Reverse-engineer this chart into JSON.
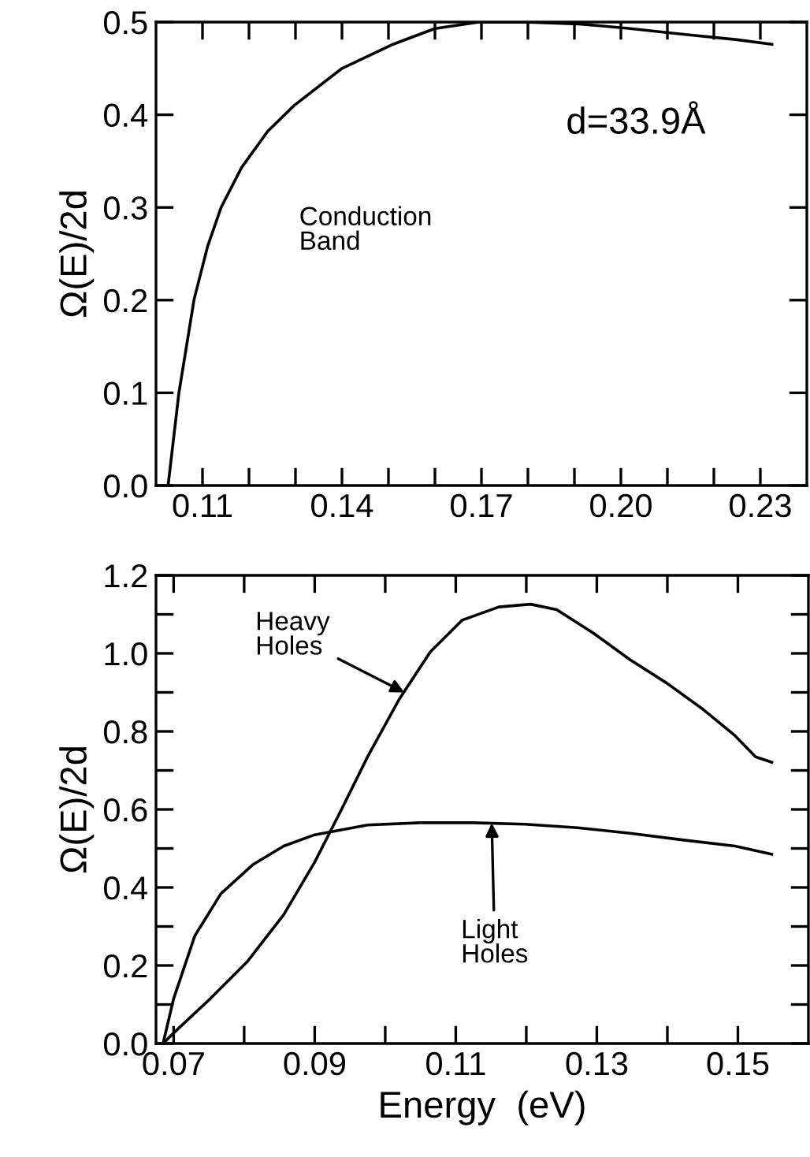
{
  "chart_data": [
    {
      "type": "line",
      "ylabel": "Ω(E)/2d",
      "xlim": [
        0.1,
        0.24
      ],
      "ylim": [
        0,
        0.5
      ],
      "xticks": [
        {
          "value": 0.11,
          "label": "0.11"
        },
        {
          "value": 0.12,
          "label": null
        },
        {
          "value": 0.13,
          "label": null
        },
        {
          "value": 0.14,
          "label": "0.14"
        },
        {
          "value": 0.15,
          "label": null
        },
        {
          "value": 0.16,
          "label": null
        },
        {
          "value": 0.17,
          "label": "0.17"
        },
        {
          "value": 0.18,
          "label": null
        },
        {
          "value": 0.19,
          "label": null
        },
        {
          "value": 0.2,
          "label": "0.20"
        },
        {
          "value": 0.21,
          "label": null
        },
        {
          "value": 0.22,
          "label": null
        },
        {
          "value": 0.23,
          "label": "0.23"
        }
      ],
      "yticks": [
        {
          "value": 0,
          "label": "0.0"
        },
        0.1,
        0.2,
        0.3,
        0.4,
        0.5
      ],
      "grid": false,
      "legend": false,
      "marker": "none",
      "line_style": "solid",
      "annotations": [
        "d=33.9Å",
        "Conduction\nBand"
      ],
      "series": [
        {
          "color": "#000000",
          "x": [
            0.1026,
            0.1049,
            0.1082,
            0.1111,
            0.114,
            0.1184,
            0.124,
            0.1297,
            0.14,
            0.151,
            0.16,
            0.1695,
            0.179,
            0.191,
            0.202,
            0.213,
            0.225,
            0.2325
          ],
          "values": [
            0,
            0.099,
            0.201,
            0.258,
            0.3,
            0.343,
            0.382,
            0.41,
            0.45,
            0.476,
            0.493,
            0.5,
            0.5,
            0.498,
            0.493,
            0.487,
            0.481,
            0.476
          ]
        }
      ]
    },
    {
      "type": "line",
      "xlabel": "Energy  (eV)",
      "ylabel": "Ω(E)/2d",
      "xlim": [
        0.0675,
        0.16
      ],
      "ylim": [
        0,
        1.2
      ],
      "xticks": [
        {
          "value": 0.07,
          "label": "0.07"
        },
        {
          "value": 0.08,
          "label": null
        },
        {
          "value": 0.09,
          "label": "0.09"
        },
        {
          "value": 0.1,
          "label": null
        },
        {
          "value": 0.11,
          "label": "0.11"
        },
        {
          "value": 0.12,
          "label": null
        },
        {
          "value": 0.13,
          "label": "0.13"
        },
        {
          "value": 0.14,
          "label": null
        },
        {
          "value": 0.15,
          "label": "0.15"
        }
      ],
      "yticks": [
        {
          "value": 0,
          "label": "0.0"
        },
        {
          "value": 0.1,
          "label": null
        },
        0.2,
        {
          "value": 0.3,
          "label": null
        },
        0.4,
        {
          "value": 0.5,
          "label": null
        },
        0.6,
        {
          "value": 0.7,
          "label": null
        },
        0.8,
        {
          "value": 0.9,
          "label": null
        },
        {
          "value": 1.0,
          "label": "1.0"
        },
        {
          "value": 1.1,
          "label": null
        },
        1.2
      ],
      "grid": false,
      "legend": false,
      "marker": "none",
      "line_style": "solid",
      "annotations": [
        {
          "text": "Heavy\nHoles",
          "x": 0.1027,
          "y": 0.9
        },
        {
          "text": "Light\nHoles",
          "x": 0.1151,
          "y": 0.565
        }
      ],
      "series": [
        {
          "color": "#000000",
          "x": [
            0.0685,
            0.07,
            0.0752,
            0.0804,
            0.0856,
            0.09,
            0.0938,
            0.0975,
            0.102,
            0.1064,
            0.1109,
            0.1161,
            0.1206,
            0.1243,
            0.1295,
            0.1347,
            0.1399,
            0.1451,
            0.1496,
            0.1525,
            0.1548
          ],
          "values": [
            0,
            0.027,
            0.115,
            0.209,
            0.33,
            0.465,
            0.6,
            0.735,
            0.883,
            1.004,
            1.085,
            1.119,
            1.126,
            1.112,
            1.052,
            0.984,
            0.924,
            0.856,
            0.789,
            0.735,
            0.721
          ]
        },
        {
          "color": "#000000",
          "x": [
            0.0685,
            0.07,
            0.073,
            0.0767,
            0.0812,
            0.0856,
            0.09,
            0.0975,
            0.1049,
            0.1124,
            0.1198,
            0.1273,
            0.1347,
            0.1421,
            0.1496,
            0.1548
          ],
          "values": [
            0,
            0.115,
            0.276,
            0.384,
            0.458,
            0.506,
            0.535,
            0.56,
            0.566,
            0.566,
            0.562,
            0.553,
            0.539,
            0.522,
            0.506,
            0.485
          ]
        }
      ]
    }
  ]
}
